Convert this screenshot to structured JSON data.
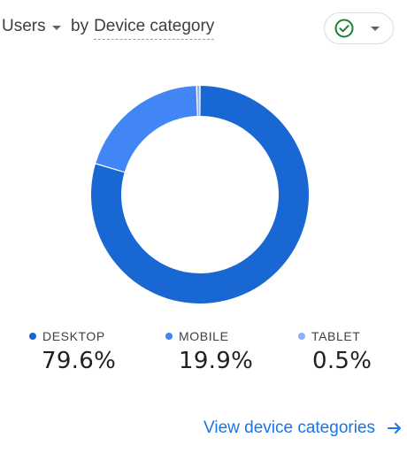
{
  "header": {
    "metric_label": "Users",
    "by_prefix": "by",
    "dimension_label": "Device category",
    "status_icon": "check-circle-icon",
    "status_color": "#188038"
  },
  "chart_data": {
    "type": "pie",
    "donut": true,
    "categories": [
      "DESKTOP",
      "MOBILE",
      "TABLET"
    ],
    "values": [
      79.6,
      19.9,
      0.5
    ],
    "unit": "%",
    "colors": [
      "#1967d2",
      "#4285f4",
      "#8ab4f8"
    ],
    "legend_placement": "bottom"
  },
  "legend": {
    "items": [
      {
        "label": "DESKTOP",
        "value": "79.6%",
        "color": "#1967d2"
      },
      {
        "label": "MOBILE",
        "value": "19.9%",
        "color": "#4285f4"
      },
      {
        "label": "TABLET",
        "value": "0.5%",
        "color": "#8ab4f8"
      }
    ]
  },
  "footer": {
    "link_label": "View device categories",
    "link_icon": "arrow-right-icon",
    "link_color": "#1a73e8"
  }
}
